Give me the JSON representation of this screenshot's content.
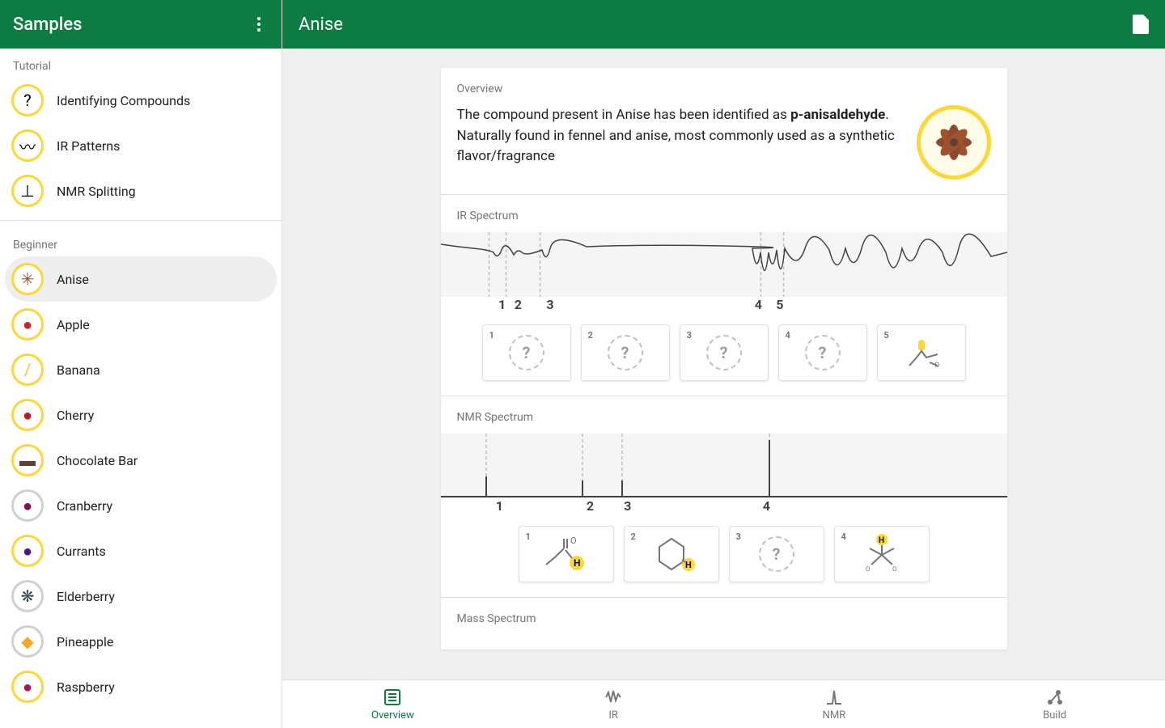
{
  "colors": {
    "primary": "#0d7c43",
    "accent": "#fdd835",
    "text": "#212121",
    "muted": "#757575"
  },
  "sidebar": {
    "title": "Samples",
    "sections": [
      {
        "label": "Tutorial",
        "items": [
          {
            "label": "Identifying Compounds",
            "icon": "?",
            "ring": "accent"
          },
          {
            "label": "IR Patterns",
            "icon": "〰",
            "ring": "accent"
          },
          {
            "label": "NMR Splitting",
            "icon": "⊥",
            "ring": "accent"
          }
        ]
      },
      {
        "label": "Beginner",
        "items": [
          {
            "label": "Anise",
            "icon": "✳",
            "ring": "accent",
            "selected": true,
            "iconColor": "#8d4a2f"
          },
          {
            "label": "Apple",
            "icon": "●",
            "ring": "accent",
            "iconColor": "#c62828"
          },
          {
            "label": "Banana",
            "icon": "/",
            "ring": "accent",
            "iconColor": "#fbc02d"
          },
          {
            "label": "Cherry",
            "icon": "●",
            "ring": "accent",
            "iconColor": "#b71c1c"
          },
          {
            "label": "Chocolate Bar",
            "icon": "▬",
            "ring": "accent",
            "iconColor": "#5d4037"
          },
          {
            "label": "Cranberry",
            "icon": "●",
            "ring": "gray",
            "iconColor": "#880e4f"
          },
          {
            "label": "Currants",
            "icon": "●",
            "ring": "accent",
            "iconColor": "#4a148c"
          },
          {
            "label": "Elderberry",
            "icon": "❋",
            "ring": "gray",
            "iconColor": "#37474f"
          },
          {
            "label": "Pineapple",
            "icon": "◆",
            "ring": "gray",
            "iconColor": "#f9a825"
          },
          {
            "label": "Raspberry",
            "icon": "●",
            "ring": "accent",
            "iconColor": "#ad1457"
          }
        ]
      }
    ]
  },
  "main": {
    "title": "Anise",
    "overview": {
      "title": "Overview",
      "text_pre": "The compound present in Anise has been identified as ",
      "compound": "p-anisaldehyde",
      "text_post": ". Naturally found in fennel and anise, most commonly used as a synthetic flavor/fragrance"
    },
    "ir": {
      "title": "IR Spectrum",
      "markers": [
        {
          "n": "1",
          "x": 8.5
        },
        {
          "n": "2",
          "x": 11.5
        },
        {
          "n": "3",
          "x": 17.5
        },
        {
          "n": "4",
          "x": 56.5
        },
        {
          "n": "5",
          "x": 60.5
        }
      ],
      "cards": [
        {
          "n": "1",
          "known": false
        },
        {
          "n": "2",
          "known": false
        },
        {
          "n": "3",
          "known": false
        },
        {
          "n": "4",
          "known": false
        },
        {
          "n": "5",
          "known": true,
          "glyph": "⬡"
        }
      ]
    },
    "nmr": {
      "title": "NMR Spectrum",
      "markers": [
        {
          "n": "1",
          "x": 8
        },
        {
          "n": "2",
          "x": 25
        },
        {
          "n": "3",
          "x": 32
        },
        {
          "n": "4",
          "x": 58
        }
      ],
      "cards": [
        {
          "n": "1",
          "known": true,
          "glyph": "CHO"
        },
        {
          "n": "2",
          "known": true,
          "glyph": "⬡H"
        },
        {
          "n": "3",
          "known": false
        },
        {
          "n": "4",
          "known": true,
          "glyph": "CH₃"
        }
      ]
    },
    "mass": {
      "title": "Mass Spectrum"
    }
  },
  "nav": {
    "items": [
      {
        "label": "Overview",
        "active": true
      },
      {
        "label": "IR",
        "active": false
      },
      {
        "label": "NMR",
        "active": false
      },
      {
        "label": "Build",
        "active": false
      }
    ]
  }
}
